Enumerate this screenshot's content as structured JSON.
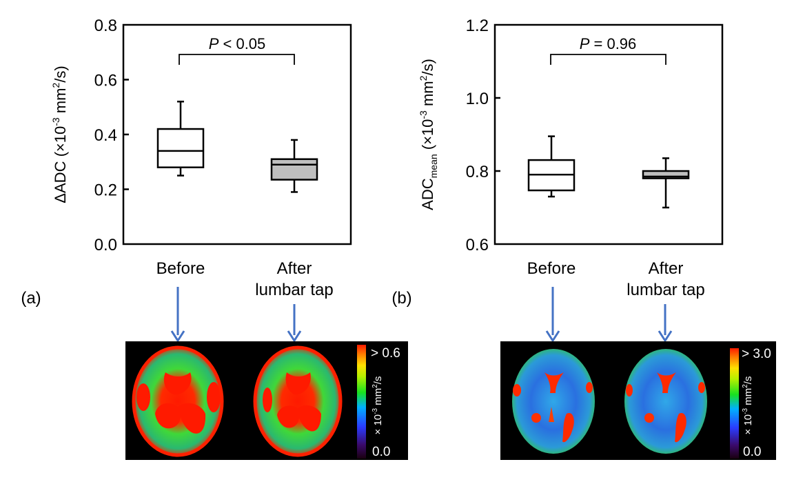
{
  "figure": {
    "arrow_color": "#4472C4",
    "box_fill_before": "#ffffff",
    "box_fill_after": "#bfbfbf"
  },
  "chart_data": [
    {
      "id": "a",
      "type": "box",
      "panel_label": "(a)",
      "ylabel_main": "ΔADC (×10",
      "ylabel_sup": "-3",
      "ylabel_rest": " mm",
      "ylabel_sup2": "2",
      "ylabel_end": "/s)",
      "ylim": [
        0.0,
        0.8
      ],
      "yticks": [
        0.0,
        0.2,
        0.4,
        0.6,
        0.8
      ],
      "ytick_labels": [
        "0.0",
        "0.2",
        "0.4",
        "0.6",
        "0.8"
      ],
      "categories": [
        "Before",
        "After\nlumbar tap"
      ],
      "category_lines": [
        [
          "Before"
        ],
        [
          "After",
          "lumbar tap"
        ]
      ],
      "boxes": [
        {
          "name": "Before",
          "whisker_low": 0.25,
          "q1": 0.28,
          "median": 0.34,
          "q3": 0.42,
          "whisker_high": 0.52,
          "fill": "#ffffff"
        },
        {
          "name": "After lumbar tap",
          "whisker_low": 0.19,
          "q1": 0.235,
          "median": 0.29,
          "q3": 0.31,
          "whisker_high": 0.38,
          "fill": "#bfbfbf"
        }
      ],
      "annotation": {
        "italic": "P",
        "text": " < 0.05"
      },
      "colormap_scale": {
        "max_label": "> 0.6",
        "min_label": "0.0",
        "unit_prefix": "× 10",
        "unit_sup": "-3",
        "unit_mid": " mm",
        "unit_sup2": "2",
        "unit_end": "/s"
      },
      "map_images": [
        "Before",
        "After lumbar tap"
      ]
    },
    {
      "id": "b",
      "type": "box",
      "panel_label": "(b)",
      "ylabel_main": "ADC",
      "ylabel_sub": "mean",
      "ylabel_rest": " (×10",
      "ylabel_sup": "-3",
      "ylabel_rest2": " mm",
      "ylabel_sup2": "2",
      "ylabel_end": "/s)",
      "ylim": [
        0.6,
        1.2
      ],
      "yticks": [
        0.6,
        0.8,
        1.0,
        1.2
      ],
      "ytick_labels": [
        "0.6",
        "0.8",
        "1.0",
        "1.2"
      ],
      "categories": [
        "Before",
        "After\nlumbar tap"
      ],
      "category_lines": [
        [
          "Before"
        ],
        [
          "After",
          "lumbar tap"
        ]
      ],
      "boxes": [
        {
          "name": "Before",
          "whisker_low": 0.73,
          "q1": 0.747,
          "median": 0.79,
          "q3": 0.83,
          "whisker_high": 0.895,
          "fill": "#ffffff"
        },
        {
          "name": "After lumbar tap",
          "whisker_low": 0.7,
          "q1": 0.78,
          "median": 0.785,
          "q3": 0.8,
          "whisker_high": 0.835,
          "fill": "#bfbfbf"
        }
      ],
      "annotation": {
        "italic": "P",
        "text": " = 0.96"
      },
      "colormap_scale": {
        "max_label": "> 3.0",
        "min_label": "0.0",
        "unit_prefix": "× 10",
        "unit_sup": "-3",
        "unit_mid": " mm",
        "unit_sup2": "2",
        "unit_end": "/s"
      },
      "map_images": [
        "Before",
        "After lumbar tap"
      ]
    }
  ]
}
